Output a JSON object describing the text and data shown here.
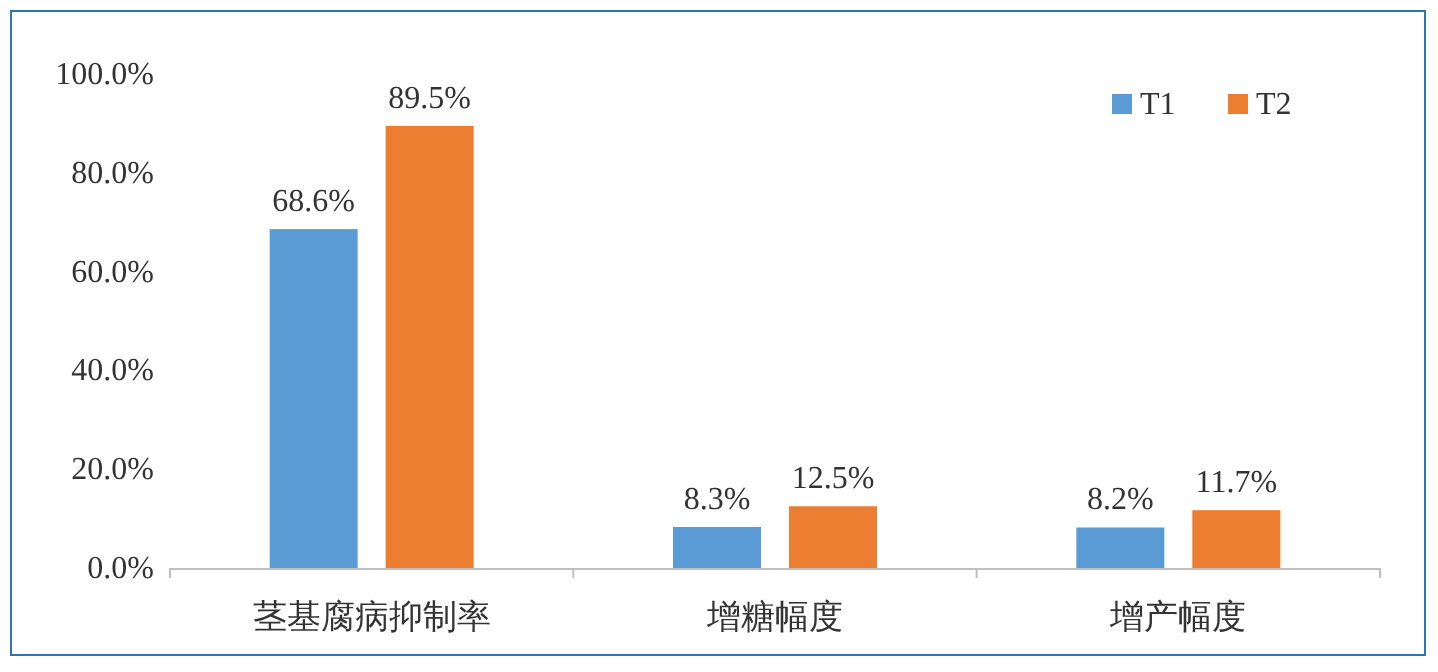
{
  "chart_data": {
    "type": "bar",
    "categories": [
      "茎基腐病抑制率",
      "增糖幅度",
      "增产幅度"
    ],
    "series": [
      {
        "name": "T1",
        "color": "#5b9bd5",
        "values": [
          68.6,
          8.3,
          8.2
        ],
        "value_labels": [
          "68.6%",
          "8.3%",
          "8.2%"
        ]
      },
      {
        "name": "T2",
        "color": "#ed7d31",
        "values": [
          89.5,
          12.5,
          11.7
        ],
        "value_labels": [
          "89.5%",
          "12.5%",
          "11.7%"
        ]
      }
    ],
    "ylim": [
      0,
      100
    ],
    "yticks": [
      {
        "value": 0,
        "label": "0.0%"
      },
      {
        "value": 20,
        "label": "20.0%"
      },
      {
        "value": 40,
        "label": "40.0%"
      },
      {
        "value": 60,
        "label": "60.0%"
      },
      {
        "value": 80,
        "label": "80.0%"
      },
      {
        "value": 100,
        "label": "100.0%"
      }
    ],
    "grid": false,
    "legend": "top right"
  }
}
